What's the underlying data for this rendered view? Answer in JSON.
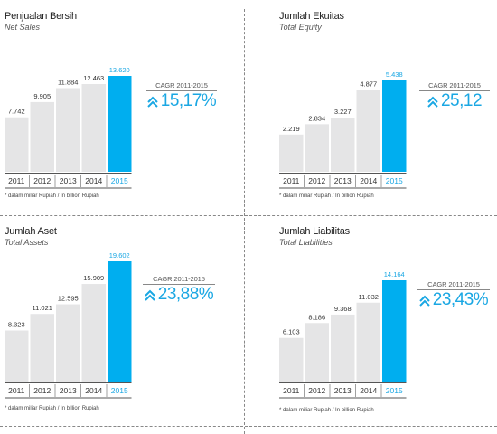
{
  "colors": {
    "bar_grey": "#e5e5e6",
    "bar_accent": "#00aeef",
    "accent_text": "#1aa7e3",
    "value_text": "#333333"
  },
  "cagr_label": "CAGR 2011-2015",
  "chart_data": [
    {
      "type": "bar",
      "title": "Penjualan Bersih",
      "subtitle": "Net Sales",
      "categories": [
        "2011",
        "2012",
        "2013",
        "2014",
        "2015"
      ],
      "values": [
        7742,
        9905,
        11884,
        12463,
        13620
      ],
      "value_labels": [
        "7.742",
        "9.905",
        "11.884",
        "12.463",
        "13.620"
      ],
      "highlight": "2015",
      "cagr": "15,17%",
      "note": "* dalam miliar Rupiah / In billion Rupiah"
    },
    {
      "type": "bar",
      "title": "Jumlah Ekuitas",
      "subtitle": "Total Equity",
      "categories": [
        "2011",
        "2012",
        "2013",
        "2014",
        "2015"
      ],
      "values": [
        2219,
        2834,
        3227,
        4877,
        5438
      ],
      "value_labels": [
        "2.219",
        "2.834",
        "3.227",
        "4.877",
        "5.438"
      ],
      "highlight": "2015",
      "cagr": "25,12",
      "note": "* dalam miliar Rupiah / In billion Rupiah"
    },
    {
      "type": "bar",
      "title": "Jumlah Aset",
      "subtitle": "Total Assets",
      "categories": [
        "2011",
        "2012",
        "2013",
        "2014",
        "2015"
      ],
      "values": [
        8323,
        11021,
        12595,
        15909,
        19602
      ],
      "value_labels": [
        "8.323",
        "11.021",
        "12.595",
        "15.909",
        "19.602"
      ],
      "highlight": "2015",
      "cagr": "23,88%",
      "note": "* dalam miliar Rupiah / In billion Rupiah"
    },
    {
      "type": "bar",
      "title": "Jumlah Liabilitas",
      "subtitle": "Total Liabilities",
      "categories": [
        "2011",
        "2012",
        "2013",
        "2014",
        "2015"
      ],
      "values": [
        6103,
        8186,
        9368,
        11032,
        14164
      ],
      "value_labels": [
        "6.103",
        "8.186",
        "9.368",
        "11.032",
        "14.164"
      ],
      "highlight": "2015",
      "cagr": "23,43%",
      "note": "* dalam miliar Rupiah / In billion Rupiah"
    }
  ]
}
